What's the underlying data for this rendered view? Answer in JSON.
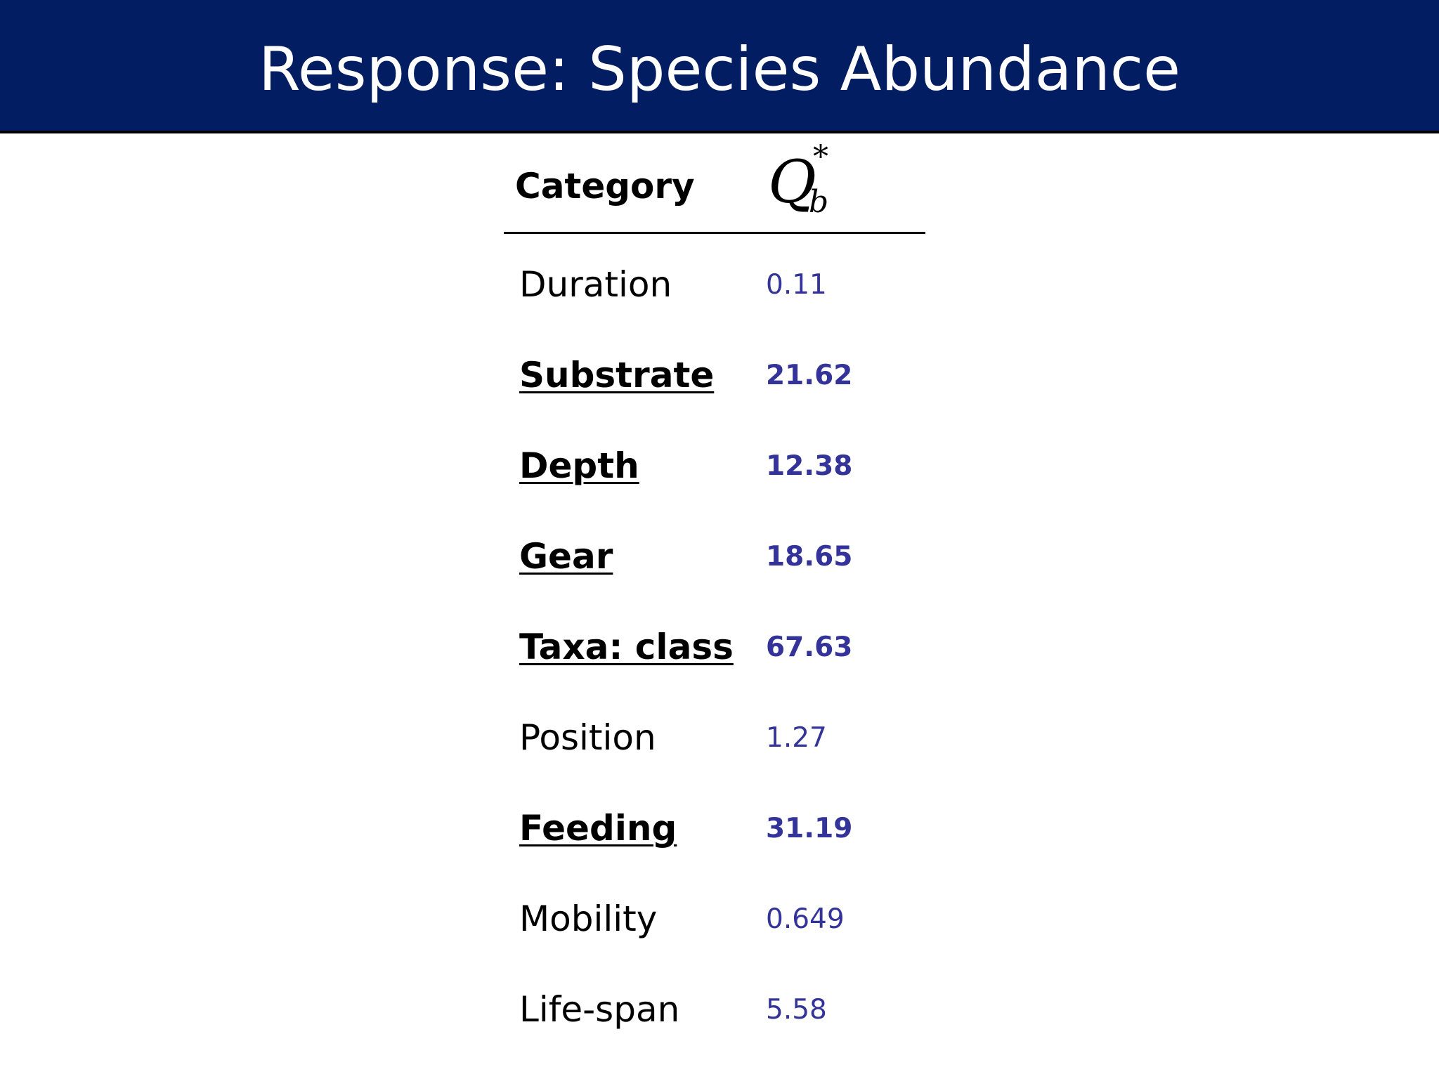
{
  "title": "Response: Species Abundance",
  "table": {
    "header": {
      "category": "Category",
      "stat_symbol": "Q",
      "stat_subscript": "b",
      "stat_superscript": "*"
    },
    "rows": [
      {
        "category": "Duration",
        "value": "0.11",
        "significant": false
      },
      {
        "category": "Substrate",
        "value": "21.62",
        "significant": true
      },
      {
        "category": "Depth",
        "value": "12.38",
        "significant": true
      },
      {
        "category": "Gear",
        "value": "18.65",
        "significant": true
      },
      {
        "category": "Taxa: class",
        "value": "67.63",
        "significant": true
      },
      {
        "category": "Position",
        "value": "1.27",
        "significant": false
      },
      {
        "category": "Feeding",
        "value": "31.19",
        "significant": true
      },
      {
        "category": "Mobility",
        "value": "0.649",
        "significant": false
      },
      {
        "category": "Life-span",
        "value": "5.58",
        "significant": false
      }
    ]
  },
  "colors": {
    "title_bar": "#031d62",
    "value_text": "#333399"
  }
}
